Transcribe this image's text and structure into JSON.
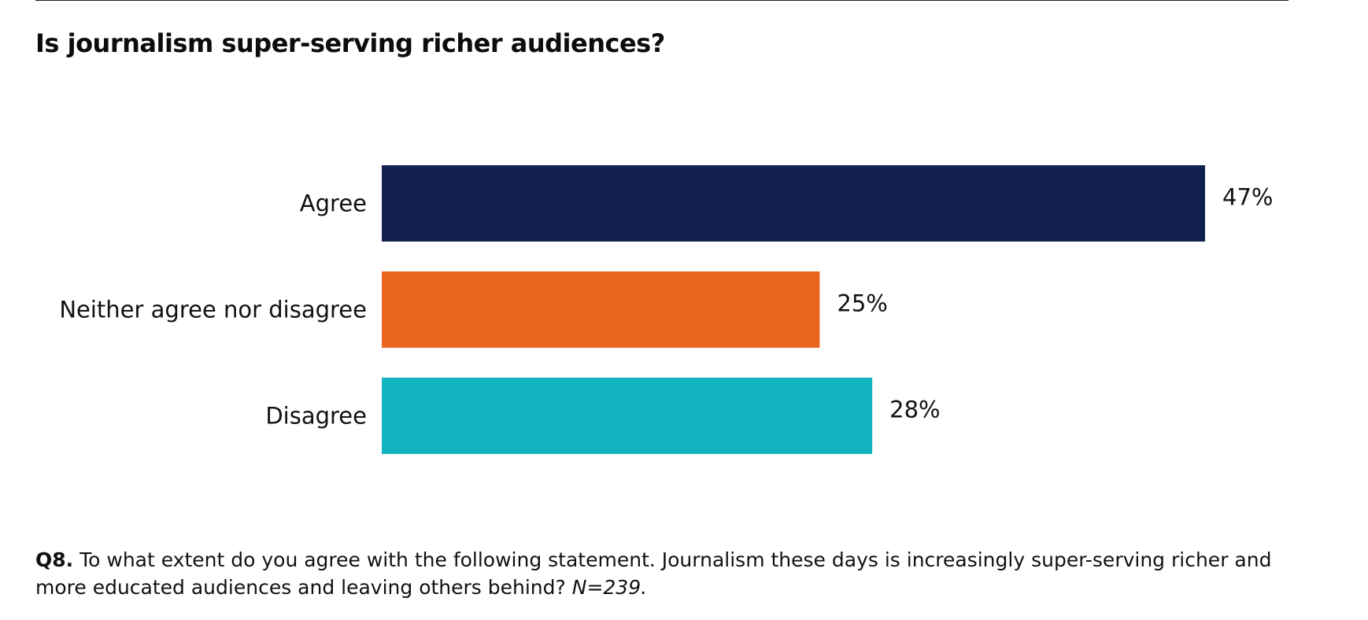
{
  "title": "Is journalism super-serving richer audiences?",
  "chart_data": {
    "type": "bar",
    "orientation": "horizontal",
    "categories": [
      "Agree",
      "Neither agree nor disagree",
      "Disagree"
    ],
    "values": [
      47,
      25,
      28
    ],
    "value_labels": [
      "47%",
      "25%",
      "28%"
    ],
    "colors": [
      "#12214f",
      "#ea661e",
      "#13b3bf"
    ],
    "xlim": [
      0,
      47
    ],
    "grid": false,
    "legend": "none"
  },
  "footnote": {
    "question_label": "Q8.",
    "text": " To what extent do you agree with the following statement. Journalism these days is increasingly super-serving richer and more educated audiences and leaving others behind? ",
    "sample": "N=239."
  }
}
